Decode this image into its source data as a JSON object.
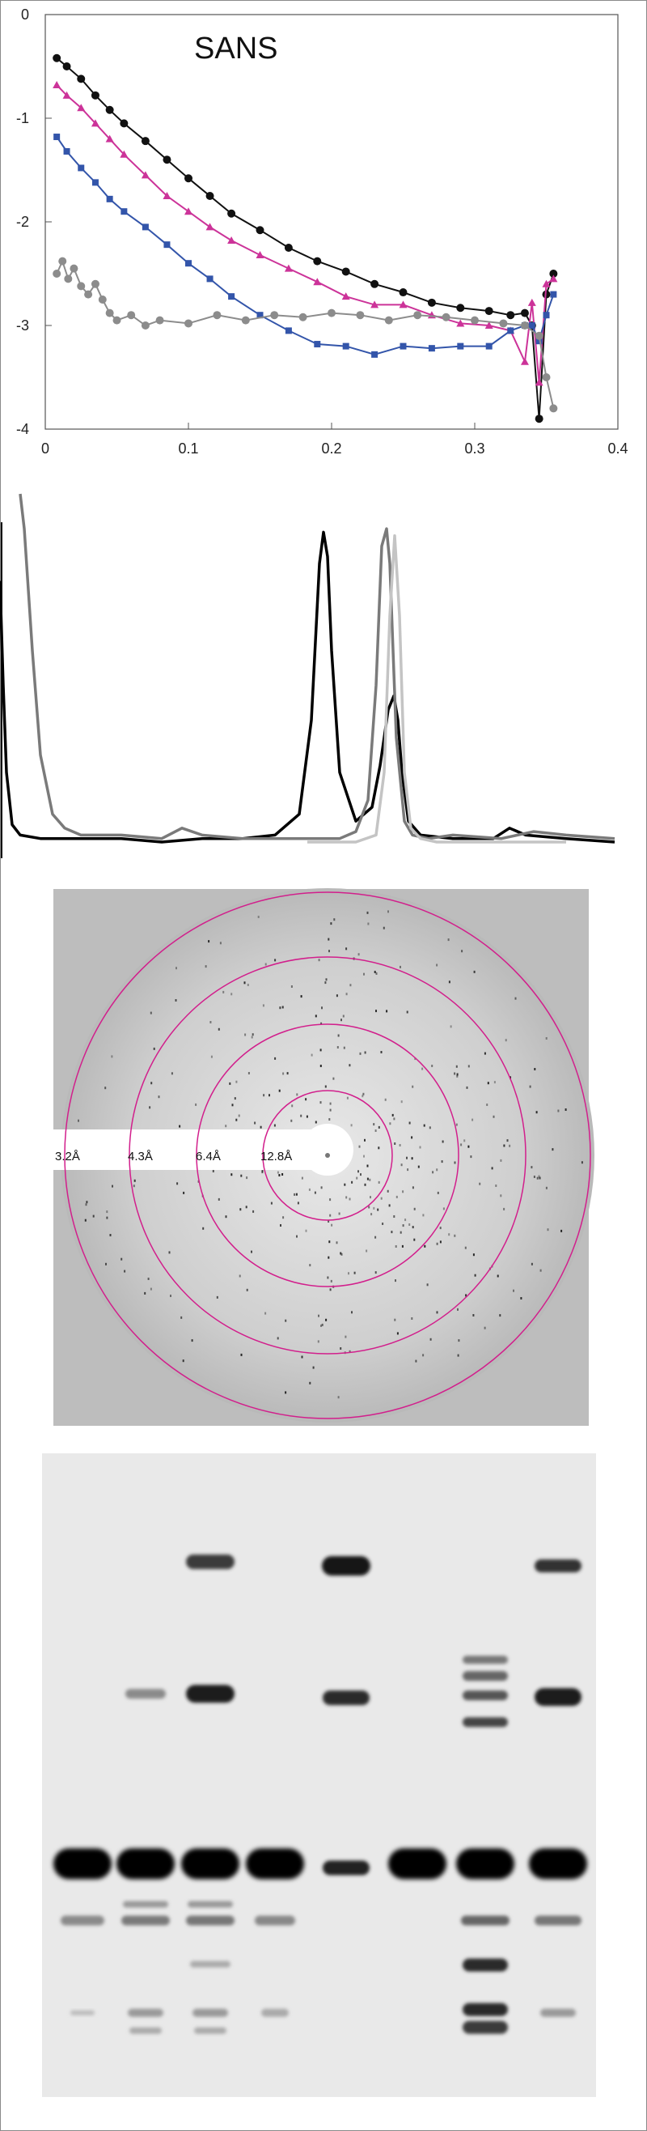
{
  "panels": {
    "sans": {
      "label": "SANS"
    },
    "chromatogram": {},
    "diffraction": {
      "rings": [
        {
          "label": "12.8Å",
          "color": "#d21f8c"
        },
        {
          "label": "6.4Å",
          "color": "#d21f8c"
        },
        {
          "label": "4.3Å",
          "color": "#d21f8c"
        },
        {
          "label": "3.2Å",
          "color": "#d21f8c"
        }
      ]
    },
    "gel": {}
  },
  "chart_data": [
    {
      "type": "scatter",
      "title": "SANS",
      "xlabel": "",
      "ylabel": "",
      "xlim": [
        0,
        0.4
      ],
      "ylim": [
        -4,
        0
      ],
      "xticks": [
        "0",
        "0.1",
        "0.2",
        "0.3",
        "0.4"
      ],
      "yticks": [
        "0",
        "-1",
        "-2",
        "-3",
        "-4"
      ],
      "grid": false,
      "series": [
        {
          "color": "#111111",
          "marker": "circle",
          "x": [
            0.008,
            0.015,
            0.025,
            0.035,
            0.045,
            0.055,
            0.07,
            0.085,
            0.1,
            0.115,
            0.13,
            0.15,
            0.17,
            0.19,
            0.21,
            0.23,
            0.25,
            0.27,
            0.29,
            0.31,
            0.325,
            0.335,
            0.34,
            0.345,
            0.35,
            0.355
          ],
          "y": [
            -0.42,
            -0.5,
            -0.62,
            -0.78,
            -0.92,
            -1.05,
            -1.22,
            -1.4,
            -1.58,
            -1.75,
            -1.92,
            -2.08,
            -2.25,
            -2.38,
            -2.48,
            -2.6,
            -2.68,
            -2.78,
            -2.83,
            -2.86,
            -2.9,
            -2.88,
            -3.0,
            -3.9,
            -2.7,
            -2.5
          ]
        },
        {
          "color": "#cc3399",
          "marker": "triangle",
          "x": [
            0.008,
            0.015,
            0.025,
            0.035,
            0.045,
            0.055,
            0.07,
            0.085,
            0.1,
            0.115,
            0.13,
            0.15,
            0.17,
            0.19,
            0.21,
            0.23,
            0.25,
            0.27,
            0.29,
            0.31,
            0.325,
            0.335,
            0.34,
            0.345,
            0.35,
            0.355
          ],
          "y": [
            -0.68,
            -0.78,
            -0.9,
            -1.05,
            -1.2,
            -1.35,
            -1.55,
            -1.75,
            -1.9,
            -2.05,
            -2.18,
            -2.32,
            -2.45,
            -2.58,
            -2.72,
            -2.8,
            -2.8,
            -2.9,
            -2.98,
            -3.0,
            -3.05,
            -3.35,
            -2.78,
            -3.55,
            -2.6,
            -2.55
          ]
        },
        {
          "color": "#3355aa",
          "marker": "square",
          "x": [
            0.008,
            0.015,
            0.025,
            0.035,
            0.045,
            0.055,
            0.07,
            0.085,
            0.1,
            0.115,
            0.13,
            0.15,
            0.17,
            0.19,
            0.21,
            0.23,
            0.25,
            0.27,
            0.29,
            0.31,
            0.325,
            0.335,
            0.34,
            0.345,
            0.35,
            0.355
          ],
          "y": [
            -1.18,
            -1.32,
            -1.48,
            -1.62,
            -1.78,
            -1.9,
            -2.05,
            -2.22,
            -2.4,
            -2.55,
            -2.72,
            -2.9,
            -3.05,
            -3.18,
            -3.2,
            -3.28,
            -3.2,
            -3.22,
            -3.2,
            -3.2,
            -3.05,
            -3.0,
            -3.0,
            -3.15,
            -2.9,
            -2.7
          ]
        },
        {
          "color": "#8c8c8c",
          "marker": "circle",
          "x": [
            0.008,
            0.012,
            0.016,
            0.02,
            0.025,
            0.03,
            0.035,
            0.04,
            0.045,
            0.05,
            0.06,
            0.07,
            0.08,
            0.1,
            0.12,
            0.14,
            0.16,
            0.18,
            0.2,
            0.22,
            0.24,
            0.26,
            0.28,
            0.3,
            0.32,
            0.335,
            0.345,
            0.35,
            0.355
          ],
          "y": [
            -2.5,
            -2.38,
            -2.55,
            -2.45,
            -2.62,
            -2.7,
            -2.6,
            -2.75,
            -2.88,
            -2.95,
            -2.9,
            -3.0,
            -2.95,
            -2.98,
            -2.9,
            -2.95,
            -2.9,
            -2.92,
            -2.88,
            -2.9,
            -2.95,
            -2.9,
            -2.92,
            -2.95,
            -2.98,
            -3.0,
            -3.1,
            -3.5,
            -3.8
          ]
        }
      ]
    },
    {
      "type": "line",
      "xlabel": "",
      "ylabel": "",
      "grid": false,
      "series": [
        {
          "color": "#000000",
          "x": [
            0,
            4,
            8,
            15,
            25,
            50,
            100,
            150,
            200,
            250,
            300,
            340,
            370,
            385,
            395,
            400,
            405,
            410,
            420,
            440,
            460,
            470,
            480,
            487,
            492,
            497,
            505,
            520,
            560,
            610,
            630,
            650,
            700,
            760
          ],
          "y": [
            0.75,
            0.45,
            0.2,
            0.05,
            0.02,
            0.01,
            0.01,
            0.01,
            0.0,
            0.01,
            0.01,
            0.02,
            0.08,
            0.35,
            0.8,
            0.89,
            0.82,
            0.55,
            0.2,
            0.06,
            0.1,
            0.22,
            0.38,
            0.42,
            0.35,
            0.2,
            0.06,
            0.02,
            0.01,
            0.01,
            0.04,
            0.02,
            0.01,
            0.0
          ]
        },
        {
          "color": "#7a7a7a",
          "x": [
            25,
            30,
            40,
            50,
            65,
            80,
            100,
            150,
            200,
            225,
            250,
            300,
            350,
            400,
            420,
            440,
            455,
            465,
            472,
            478,
            482,
            490,
            500,
            510,
            530,
            560,
            620,
            660,
            700,
            760
          ],
          "y": [
            1.0,
            0.9,
            0.55,
            0.25,
            0.08,
            0.04,
            0.02,
            0.02,
            0.01,
            0.04,
            0.02,
            0.01,
            0.01,
            0.01,
            0.01,
            0.03,
            0.12,
            0.45,
            0.85,
            0.9,
            0.8,
            0.3,
            0.06,
            0.02,
            0.01,
            0.02,
            0.01,
            0.03,
            0.02,
            0.01
          ]
        },
        {
          "color": "#c4c4c4",
          "x": [
            380,
            440,
            465,
            475,
            482,
            488,
            494,
            500,
            508,
            520,
            540,
            600,
            700
          ],
          "y": [
            0.0,
            0.0,
            0.02,
            0.2,
            0.65,
            0.88,
            0.65,
            0.2,
            0.04,
            0.01,
            0.0,
            0.0,
            0.0
          ]
        }
      ]
    }
  ]
}
